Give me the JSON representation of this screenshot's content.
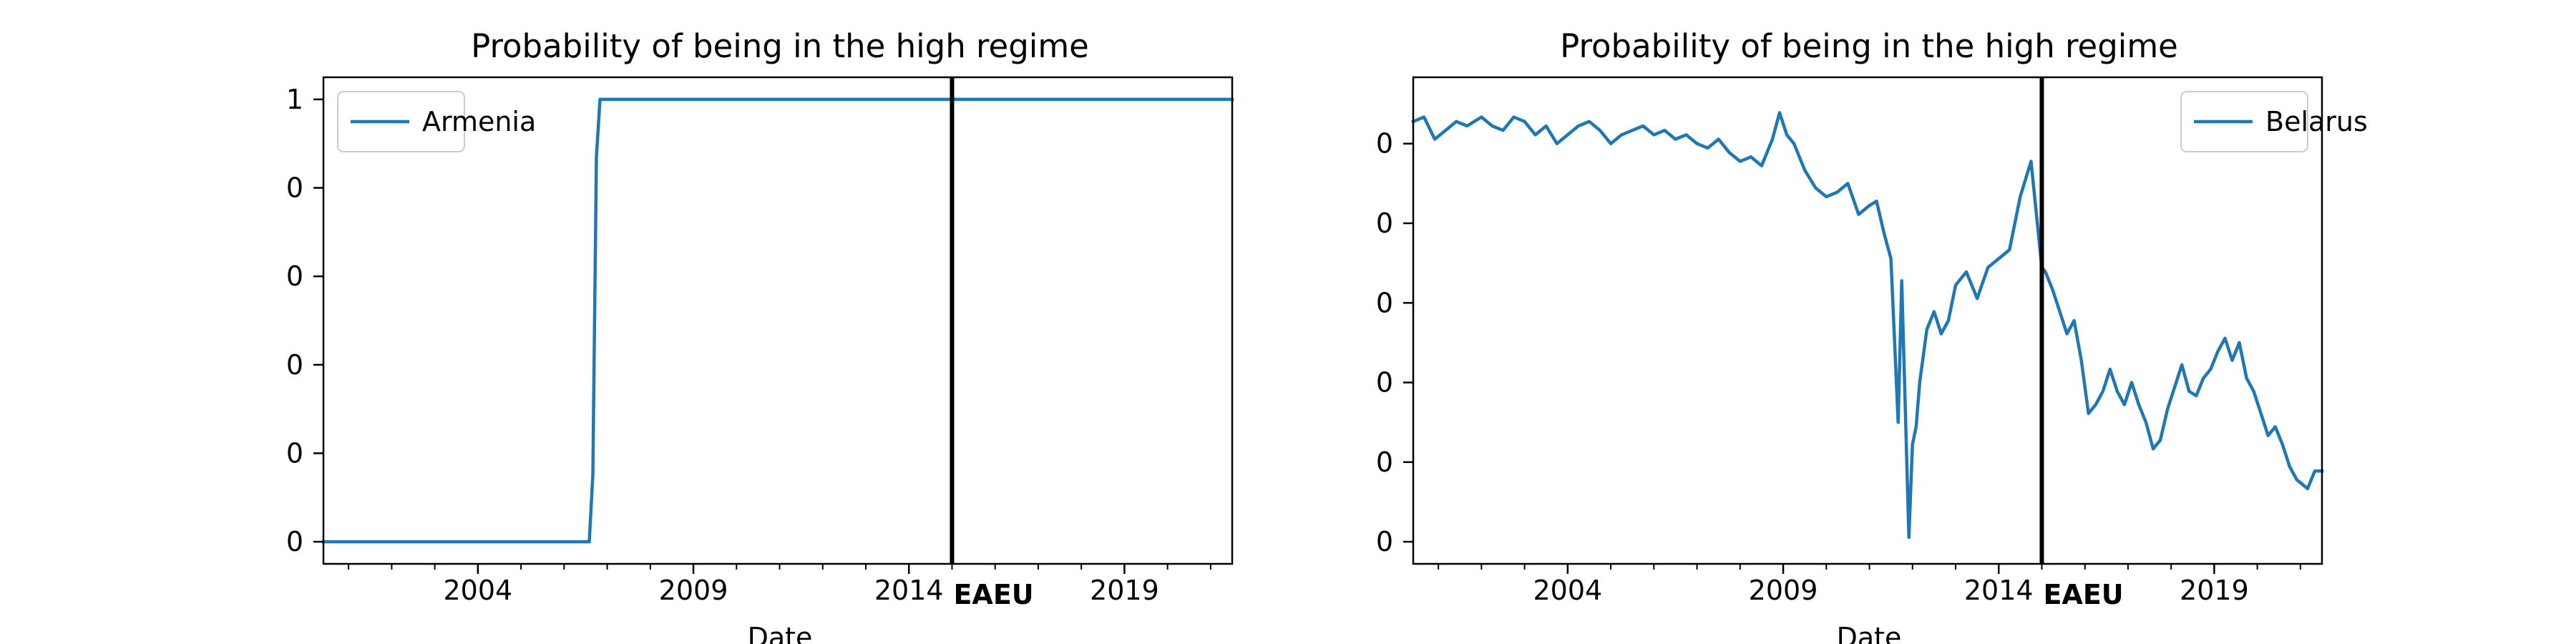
{
  "colors": {
    "series": "#1f77b4",
    "frame": "#000000",
    "vline": "#000000",
    "background": "#ffffff"
  },
  "chart_data": [
    {
      "type": "line",
      "title": "Probability of being in the high regime",
      "xlabel": "Date",
      "ylabel": "",
      "xlim": [
        "2000-06",
        "2021-07"
      ],
      "ylim": [
        -0.05,
        1.05
      ],
      "legend": {
        "placement": "top-left"
      },
      "grid": false,
      "xtick_labels": [
        "2004",
        "2009",
        "2014",
        "2019"
      ],
      "xtick_dates": [
        "2004-01",
        "2009-01",
        "2014-01",
        "2019-01"
      ],
      "minor_tick_years": [
        2001,
        2002,
        2003,
        2005,
        2006,
        2007,
        2008,
        2010,
        2011,
        2012,
        2013,
        2015,
        2016,
        2017,
        2018,
        2020,
        2021
      ],
      "ytick_labels": [
        "0",
        "0",
        "0",
        "0",
        "0",
        "1"
      ],
      "ytick_values": [
        0.0,
        0.2,
        0.4,
        0.6,
        0.8,
        1.0
      ],
      "vline": {
        "date": "2015-01",
        "label": "EAEU"
      },
      "series": [
        {
          "name": "Armenia",
          "x": [
            "2000-06",
            "2006-08",
            "2006-09",
            "2006-10",
            "2006-11",
            "2007-01",
            "2021-07"
          ],
          "y": [
            0.0,
            0.0,
            0.15,
            0.87,
            1.0,
            1.0,
            1.0
          ]
        }
      ]
    },
    {
      "type": "line",
      "title": "Probability of being in the high regime",
      "xlabel": "Date",
      "ylabel": "",
      "xlim": [
        "2000-06",
        "2021-07"
      ],
      "ylim": [
        -0.05,
        1.05
      ],
      "legend": {
        "placement": "top-right"
      },
      "grid": false,
      "xtick_labels": [
        "2004",
        "2009",
        "2014",
        "2019"
      ],
      "xtick_dates": [
        "2004-01",
        "2009-01",
        "2014-01",
        "2019-01"
      ],
      "minor_tick_years": [
        2001,
        2002,
        2003,
        2005,
        2006,
        2007,
        2008,
        2010,
        2011,
        2012,
        2013,
        2015,
        2016,
        2017,
        2018,
        2020,
        2021
      ],
      "ytick_labels": [
        "0",
        "0",
        "0",
        "0",
        "0",
        "0"
      ],
      "ytick_values": [
        0.0,
        0.18,
        0.36,
        0.54,
        0.72,
        0.9
      ],
      "vline": {
        "date": "2015-01",
        "label": "EAEU"
      },
      "series": [
        {
          "name": "Belarus",
          "x": [
            "2000-06",
            "2000-09",
            "2000-12",
            "2001-03",
            "2001-06",
            "2001-09",
            "2002-01",
            "2002-04",
            "2002-07",
            "2002-10",
            "2003-01",
            "2003-04",
            "2003-07",
            "2003-10",
            "2004-01",
            "2004-04",
            "2004-07",
            "2004-10",
            "2005-01",
            "2005-04",
            "2005-07",
            "2005-10",
            "2006-01",
            "2006-04",
            "2006-07",
            "2006-10",
            "2007-01",
            "2007-04",
            "2007-07",
            "2007-10",
            "2008-01",
            "2008-04",
            "2008-07",
            "2008-10",
            "2008-12",
            "2009-02",
            "2009-04",
            "2009-07",
            "2009-10",
            "2010-01",
            "2010-04",
            "2010-07",
            "2010-10",
            "2011-01",
            "2011-03",
            "2011-05",
            "2011-07",
            "2011-09",
            "2011-10",
            "2011-12",
            "2012-01",
            "2012-02",
            "2012-03",
            "2012-05",
            "2012-07",
            "2012-09",
            "2012-11",
            "2013-01",
            "2013-04",
            "2013-07",
            "2013-10",
            "2014-01",
            "2014-04",
            "2014-07",
            "2014-10",
            "2015-01",
            "2015-02",
            "2015-04",
            "2015-06",
            "2015-08",
            "2015-10",
            "2015-12",
            "2016-02",
            "2016-04",
            "2016-06",
            "2016-08",
            "2016-10",
            "2016-12",
            "2017-02",
            "2017-04",
            "2017-06",
            "2017-08",
            "2017-10",
            "2017-12",
            "2018-02",
            "2018-04",
            "2018-06",
            "2018-08",
            "2018-10",
            "2018-12",
            "2019-02",
            "2019-04",
            "2019-06",
            "2019-08",
            "2019-10",
            "2019-12",
            "2020-02",
            "2020-04",
            "2020-06",
            "2020-08",
            "2020-10",
            "2020-12",
            "2021-03",
            "2021-05",
            "2021-07"
          ],
          "y": [
            0.95,
            0.96,
            0.91,
            0.93,
            0.95,
            0.94,
            0.96,
            0.94,
            0.93,
            0.96,
            0.95,
            0.92,
            0.94,
            0.9,
            0.92,
            0.94,
            0.95,
            0.93,
            0.9,
            0.92,
            0.93,
            0.94,
            0.92,
            0.93,
            0.91,
            0.92,
            0.9,
            0.89,
            0.91,
            0.88,
            0.86,
            0.87,
            0.85,
            0.91,
            0.97,
            0.92,
            0.9,
            0.84,
            0.8,
            0.78,
            0.79,
            0.81,
            0.74,
            0.76,
            0.77,
            0.7,
            0.64,
            0.27,
            0.59,
            0.01,
            0.22,
            0.26,
            0.36,
            0.48,
            0.52,
            0.47,
            0.5,
            0.58,
            0.61,
            0.55,
            0.62,
            0.64,
            0.66,
            0.78,
            0.86,
            0.62,
            0.61,
            0.57,
            0.52,
            0.47,
            0.5,
            0.41,
            0.29,
            0.31,
            0.34,
            0.39,
            0.34,
            0.31,
            0.36,
            0.31,
            0.27,
            0.21,
            0.23,
            0.3,
            0.35,
            0.4,
            0.34,
            0.33,
            0.37,
            0.39,
            0.43,
            0.46,
            0.41,
            0.45,
            0.37,
            0.34,
            0.29,
            0.24,
            0.26,
            0.22,
            0.17,
            0.14,
            0.12,
            0.16,
            0.16
          ]
        }
      ]
    }
  ]
}
